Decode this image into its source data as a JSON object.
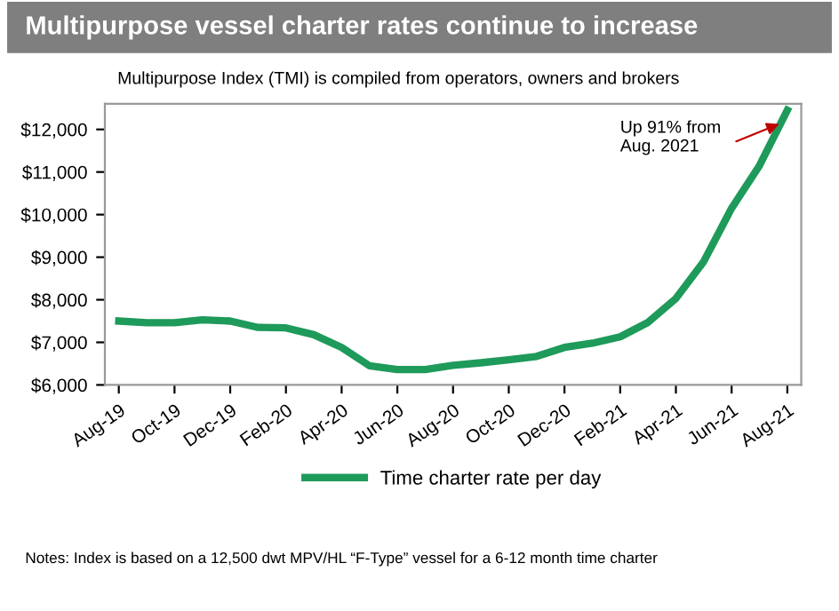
{
  "chart_data": {
    "type": "line",
    "title": "Multipurpose vessel charter rates continue to increase",
    "subtitle": "Multipurpose Index (TMI) is compiled from operators, owners and brokers",
    "categories": [
      "Aug-19",
      null,
      "Oct-19",
      null,
      "Dec-19",
      null,
      "Feb-20",
      null,
      "Apr-20",
      null,
      "Jun-20",
      null,
      "Aug-20",
      null,
      "Oct-20",
      null,
      "Dec-20",
      null,
      "Feb-21",
      null,
      "Apr-21",
      null,
      "Jun-21",
      null,
      "Aug-21"
    ],
    "series": [
      {
        "name": "Time charter rate per day",
        "color": "#1e9a5a",
        "values": [
          7500,
          7460,
          7460,
          7530,
          7500,
          7350,
          7340,
          7180,
          6880,
          6450,
          6360,
          6360,
          6460,
          6520,
          6590,
          6670,
          6880,
          6980,
          7130,
          7470,
          8030,
          8900,
          10150,
          11150,
          12450
        ]
      }
    ],
    "ylim": [
      6000,
      12600
    ],
    "yticks": [
      {
        "value": 6000,
        "label": "$6,000"
      },
      {
        "value": 7000,
        "label": "$7,000"
      },
      {
        "value": 8000,
        "label": "$8,000"
      },
      {
        "value": 9000,
        "label": "$9,000"
      },
      {
        "value": 10000,
        "label": "$10,000"
      },
      {
        "value": 11000,
        "label": "$11,000"
      },
      {
        "value": 12000,
        "label": "$12,000"
      }
    ],
    "grid": false,
    "legend": "bottom",
    "marker": "none",
    "line_style": "solid",
    "annotations": [
      "Up 91% from\nAug. 2021",
      "Notes: Index is based on a 12,500 dwt MPV/HL “F-Type” vessel for a 6-12 month time charter"
    ]
  }
}
